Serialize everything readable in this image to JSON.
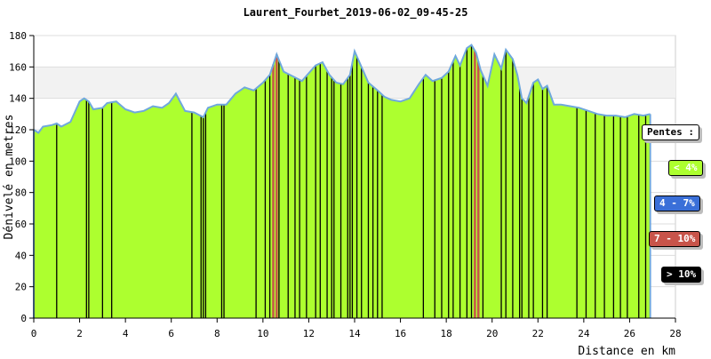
{
  "chart_data": {
    "type": "area",
    "title": "Laurent_Fourbet_2019-06-02_09-45-25",
    "xlabel": "Distance en km",
    "ylabel": "Dénivelé en metres",
    "xlim": [
      0,
      28
    ],
    "ylim": [
      0,
      180
    ],
    "x_ticks": [
      0,
      2,
      4,
      6,
      8,
      10,
      12,
      14,
      16,
      18,
      20,
      22,
      24,
      26,
      28
    ],
    "y_ticks": [
      0,
      20,
      40,
      60,
      80,
      100,
      120,
      140,
      160,
      180
    ],
    "grid": true,
    "x": [
      0,
      0.2,
      0.4,
      0.8,
      1.0,
      1.2,
      1.6,
      2.0,
      2.2,
      2.4,
      2.6,
      3.0,
      3.2,
      3.6,
      4.0,
      4.4,
      4.8,
      5.2,
      5.6,
      5.9,
      6.2,
      6.6,
      7.0,
      7.4,
      7.6,
      8.0,
      8.4,
      8.8,
      9.2,
      9.6,
      10.0,
      10.3,
      10.6,
      10.9,
      11.3,
      11.7,
      12.0,
      12.3,
      12.6,
      12.9,
      13.2,
      13.5,
      13.8,
      14.0,
      14.3,
      14.6,
      15.0,
      15.3,
      15.6,
      16.0,
      16.4,
      16.8,
      17.1,
      17.4,
      17.8,
      18.1,
      18.4,
      18.6,
      18.9,
      19.1,
      19.3,
      19.5,
      19.8,
      20.1,
      20.4,
      20.6,
      20.9,
      21.1,
      21.3,
      21.5,
      21.8,
      22.0,
      22.2,
      22.4,
      22.7,
      23.0,
      23.4,
      23.8,
      24.2,
      24.6,
      25.0,
      25.4,
      25.8,
      26.2,
      26.6,
      26.9
    ],
    "y": [
      120,
      118,
      122,
      123,
      124,
      122,
      125,
      138,
      140,
      138,
      133,
      134,
      137,
      138,
      133,
      131,
      132,
      135,
      134,
      137,
      143,
      132,
      131,
      128,
      134,
      136,
      136,
      143,
      147,
      145,
      150,
      155,
      168,
      157,
      154,
      151,
      156,
      161,
      163,
      155,
      150,
      149,
      155,
      170,
      160,
      150,
      145,
      141,
      139,
      138,
      140,
      149,
      155,
      151,
      153,
      157,
      167,
      161,
      172,
      174,
      169,
      158,
      148,
      168,
      159,
      171,
      165,
      155,
      140,
      137,
      150,
      152,
      146,
      148,
      136,
      136,
      135,
      134,
      132,
      130,
      129,
      129,
      128,
      130,
      129,
      130
    ],
    "fill_color": "#adff2f",
    "line_color": "#6fa8dc",
    "grade_bands": [
      {
        "x": 10.45,
        "class": "7-10"
      },
      {
        "x": 10.6,
        "class": "7-10"
      },
      {
        "x": 19.25,
        "class": "7-10"
      },
      {
        "x": 19.4,
        "class": "7-10"
      }
    ],
    "steep_lines_x": [
      1.0,
      2.3,
      2.4,
      3.0,
      3.4,
      6.9,
      7.3,
      7.4,
      7.5,
      8.2,
      8.3,
      9.7,
      10.1,
      10.3,
      10.7,
      11.1,
      11.4,
      11.6,
      11.9,
      12.3,
      12.5,
      12.8,
      13.0,
      13.1,
      13.4,
      13.7,
      13.8,
      13.9,
      14.1,
      14.3,
      14.6,
      14.8,
      15.0,
      15.2,
      17.0,
      17.5,
      17.8,
      18.1,
      18.3,
      18.6,
      18.9,
      19.1,
      19.6,
      20.4,
      20.6,
      20.9,
      21.2,
      21.3,
      21.6,
      21.8,
      22.2,
      22.4,
      23.7,
      24.1,
      24.5,
      24.9,
      25.3,
      25.6,
      25.9,
      26.4,
      26.7
    ],
    "legend": {
      "placement": "right",
      "title": "Pentes :",
      "items": [
        {
          "label": "< 4%",
          "color": "#adff2f",
          "text_color": "#ffffff"
        },
        {
          "label": "4 - 7%",
          "color": "#3a6fd8",
          "text_color": "#ffffff"
        },
        {
          "label": "7 - 10%",
          "color": "#c8544a",
          "text_color": "#ffffff"
        },
        {
          "label": "> 10%",
          "color": "#000000",
          "text_color": "#ffffff"
        }
      ]
    }
  }
}
